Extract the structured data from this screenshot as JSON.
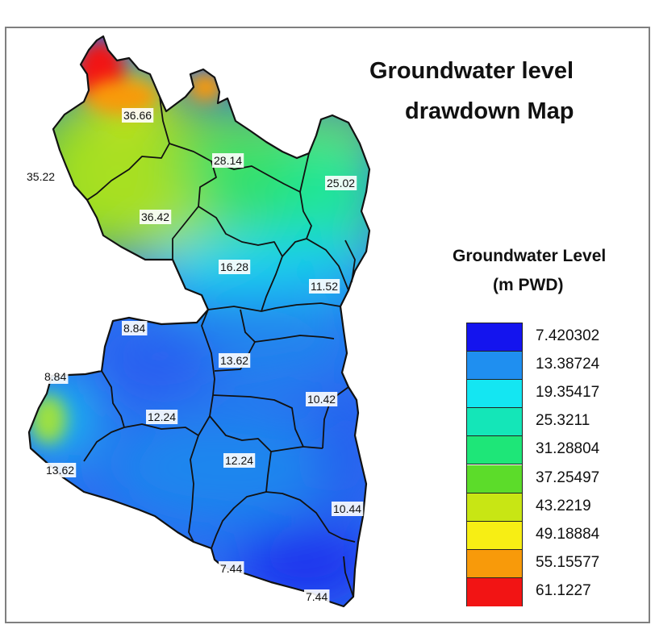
{
  "title": {
    "line1": "Groundwater level",
    "line2": "drawdown Map"
  },
  "legend": {
    "title_line1": "Groundwater Level",
    "title_line2": "(m PWD)",
    "items": [
      {
        "value": "7.420302",
        "color": "#1414ee"
      },
      {
        "value": "13.38724",
        "color": "#1f8ff0"
      },
      {
        "value": "19.35417",
        "color": "#14e6f2"
      },
      {
        "value": "25.3211",
        "color": "#14e6b8"
      },
      {
        "value": "31.28804",
        "color": "#1ee678"
      },
      {
        "value": "37.25497",
        "color": "#5cdc2a"
      },
      {
        "value": "43.2219",
        "color": "#c8e614"
      },
      {
        "value": "49.18884",
        "color": "#f7ee14"
      },
      {
        "value": "55.15577",
        "color": "#f89a0a"
      },
      {
        "value": "61.1227",
        "color": "#f21414"
      }
    ]
  },
  "well_labels": [
    "36.66",
    "28.14",
    "35.22",
    "25.02",
    "36.42",
    "16.28",
    "11.52",
    "8.84",
    "13.62",
    "8.84",
    "10.42",
    "12.24",
    "12.24",
    "13.62",
    "10.44",
    "7.44",
    "7.44"
  ]
}
